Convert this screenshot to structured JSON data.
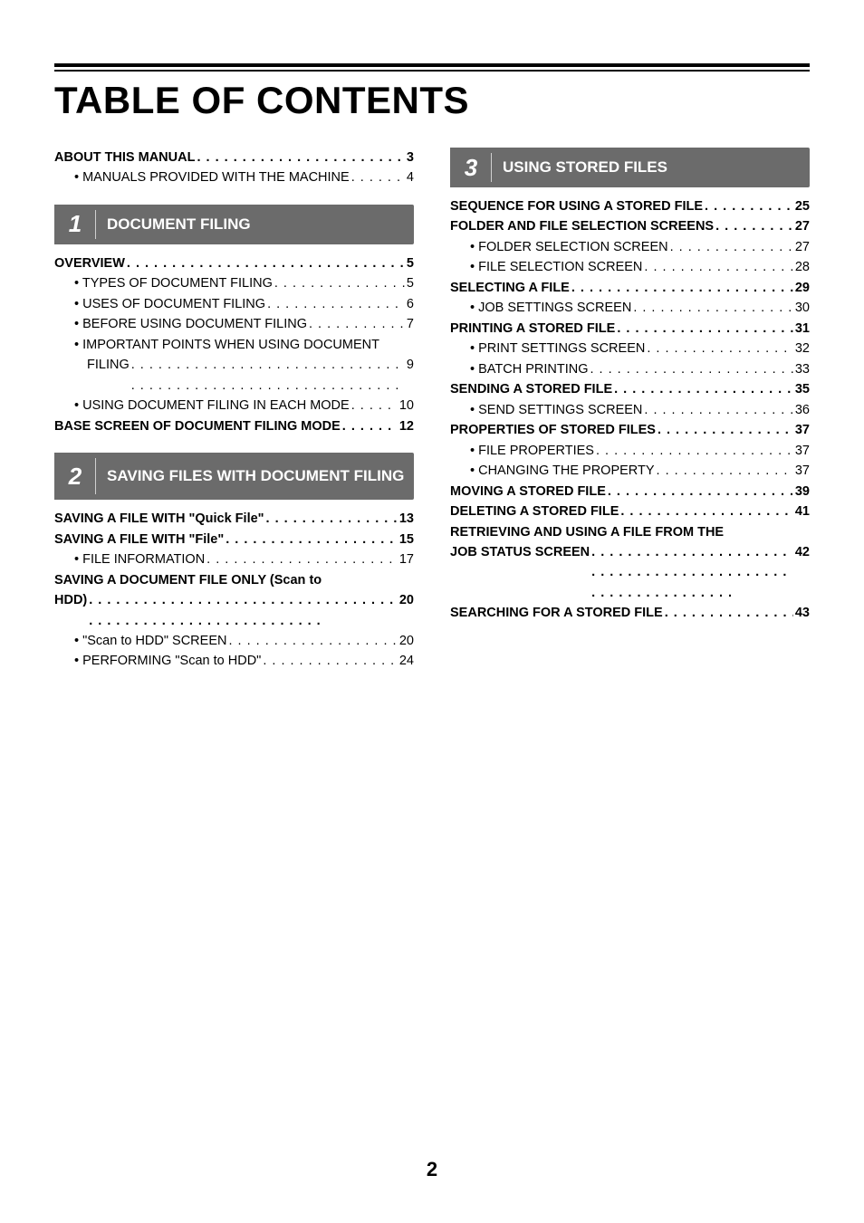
{
  "title": "TABLE OF CONTENTS",
  "page_number": "2",
  "colors": {
    "section_bg": "#6b6b6b",
    "section_text": "#ffffff",
    "text": "#000000",
    "background": "#ffffff"
  },
  "left": {
    "intro": [
      {
        "label": "ABOUT THIS MANUAL",
        "page": "3",
        "bold": true
      },
      {
        "label": "• MANUALS PROVIDED WITH THE MACHINE",
        "page": "4",
        "bold": false,
        "sub": true
      }
    ],
    "section1": {
      "num": "1",
      "title": "DOCUMENT FILING",
      "items": [
        {
          "label": "OVERVIEW",
          "page": "5",
          "bold": true
        },
        {
          "label": "• TYPES OF DOCUMENT FILING",
          "page": "5",
          "sub": true
        },
        {
          "label": "• USES OF DOCUMENT FILING",
          "page": "6",
          "sub": true
        },
        {
          "label": "• BEFORE USING DOCUMENT FILING",
          "page": "7",
          "sub": true
        },
        {
          "label": "• IMPORTANT POINTS WHEN USING DOCUMENT FILING",
          "page": "9",
          "sub": true,
          "wrap": true,
          "cont_indent": true
        },
        {
          "label": "• USING DOCUMENT FILING IN EACH MODE",
          "page": "10",
          "sub": true
        },
        {
          "label": "BASE SCREEN OF DOCUMENT FILING MODE",
          "page": "12",
          "bold": true
        }
      ]
    },
    "section2": {
      "num": "2",
      "title": "SAVING FILES WITH DOCUMENT FILING",
      "items": [
        {
          "label": "SAVING A FILE WITH \"Quick File\"",
          "page": "13",
          "bold": true
        },
        {
          "label": "SAVING A FILE WITH \"File\"",
          "page": "15",
          "bold": true
        },
        {
          "label": "• FILE INFORMATION",
          "page": "17",
          "sub": true
        },
        {
          "label": "SAVING A DOCUMENT FILE ONLY (Scan to HDD)",
          "page": "20",
          "bold": true,
          "wrap": true
        },
        {
          "label": "• \"Scan to HDD\" SCREEN",
          "page": "20",
          "sub": true
        },
        {
          "label": "• PERFORMING \"Scan to HDD\"",
          "page": "24",
          "sub": true
        }
      ]
    }
  },
  "right": {
    "section3": {
      "num": "3",
      "title": "USING STORED FILES",
      "items": [
        {
          "label": "SEQUENCE FOR USING A STORED FILE",
          "page": "25",
          "bold": true
        },
        {
          "label": "FOLDER AND FILE SELECTION SCREENS",
          "page": "27",
          "bold": true
        },
        {
          "label": "• FOLDER SELECTION SCREEN",
          "page": "27",
          "sub": true
        },
        {
          "label": "• FILE SELECTION SCREEN",
          "page": "28",
          "sub": true
        },
        {
          "label": "SELECTING A FILE",
          "page": "29",
          "bold": true
        },
        {
          "label": "• JOB SETTINGS SCREEN",
          "page": "30",
          "sub": true
        },
        {
          "label": "PRINTING A STORED FILE",
          "page": "31",
          "bold": true
        },
        {
          "label": "• PRINT SETTINGS SCREEN",
          "page": "32",
          "sub": true
        },
        {
          "label": "• BATCH PRINTING",
          "page": "33",
          "sub": true
        },
        {
          "label": "SENDING A STORED FILE",
          "page": "35",
          "bold": true
        },
        {
          "label": "• SEND SETTINGS SCREEN",
          "page": "36",
          "sub": true
        },
        {
          "label": "PROPERTIES OF STORED FILES",
          "page": "37",
          "bold": true
        },
        {
          "label": "• FILE PROPERTIES",
          "page": "37",
          "sub": true
        },
        {
          "label": "• CHANGING THE PROPERTY",
          "page": "37",
          "sub": true
        },
        {
          "label": "MOVING A STORED FILE",
          "page": "39",
          "bold": true
        },
        {
          "label": "DELETING A STORED FILE",
          "page": "41",
          "bold": true
        },
        {
          "label": "RETRIEVING AND USING A FILE FROM THE JOB STATUS SCREEN",
          "page": "42",
          "bold": true,
          "wrap": true
        },
        {
          "label": "SEARCHING FOR A STORED FILE",
          "page": "43",
          "bold": true
        }
      ]
    }
  }
}
